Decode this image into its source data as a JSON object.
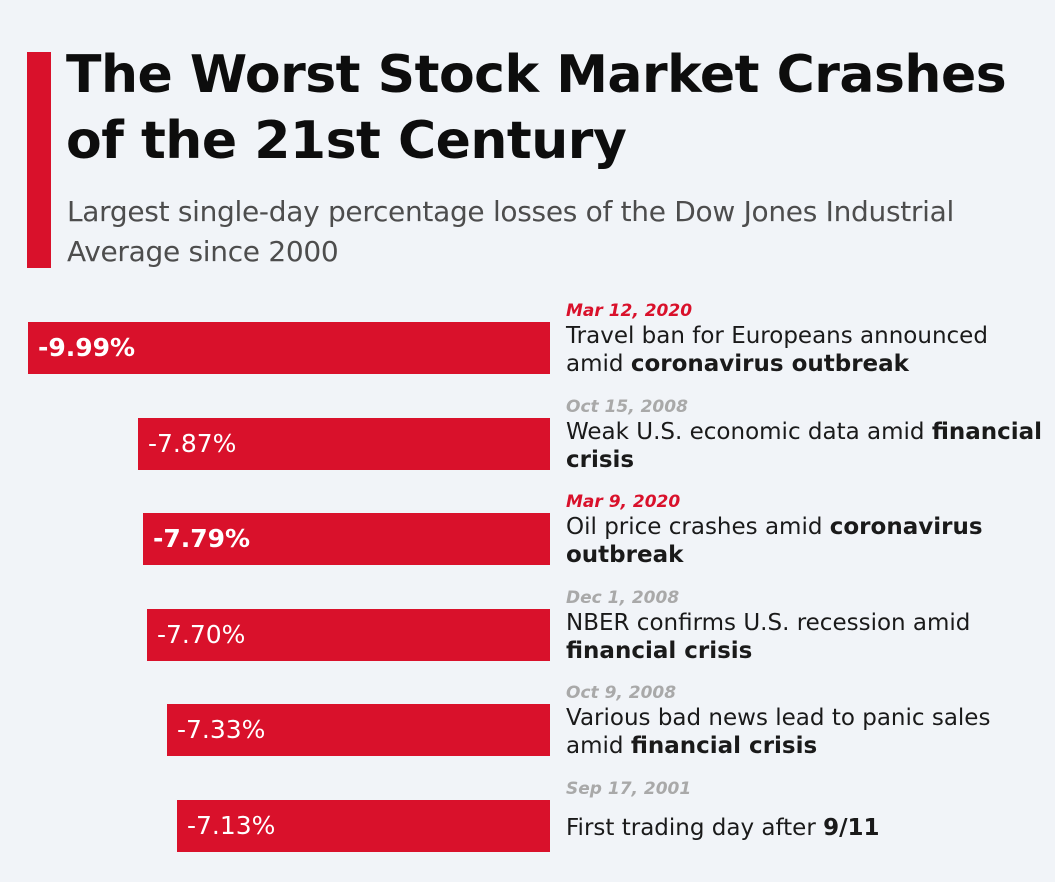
{
  "chart_data": {
    "type": "bar",
    "orientation": "horizontal",
    "title": "The Worst Stock Market Crashes of the 21st Century",
    "subtitle": "Largest single-day percentage losses of the Dow Jones Industrial Average since 2000",
    "colors": {
      "bar": "#d9112b",
      "highlight_date": "#d9112b",
      "date": "#a9a9a9",
      "background": "#f1f4f8"
    },
    "items": [
      {
        "date": "Mar 12, 2020",
        "value": -9.99,
        "value_label": "-9.99%",
        "highlight": true,
        "desc_plain": "Travel ban for Europeans announced amid ",
        "desc_bold": "coronavirus outbreak"
      },
      {
        "date": "Oct 15, 2008",
        "value": -7.87,
        "value_label": "-7.87%",
        "highlight": false,
        "desc_plain": "Weak U.S. economic data amid ",
        "desc_bold": "financial crisis"
      },
      {
        "date": "Mar 9, 2020",
        "value": -7.79,
        "value_label": "-7.79%",
        "highlight": true,
        "desc_plain": "Oil price crashes amid ",
        "desc_bold": "coronavirus outbreak"
      },
      {
        "date": "Dec 1, 2008",
        "value": -7.7,
        "value_label": "-7.70%",
        "highlight": false,
        "desc_plain": "NBER confirms U.S. recession amid ",
        "desc_bold": "financial crisis"
      },
      {
        "date": "Oct 9, 2008",
        "value": -7.33,
        "value_label": "-7.33%",
        "highlight": false,
        "desc_plain": "Various bad news lead to panic sales amid ",
        "desc_bold": "financial crisis"
      },
      {
        "date": "Sep 17, 2001",
        "value": -7.13,
        "value_label": "-7.13%",
        "highlight": false,
        "desc_plain": "First trading day after ",
        "desc_bold": "9/11"
      }
    ]
  }
}
